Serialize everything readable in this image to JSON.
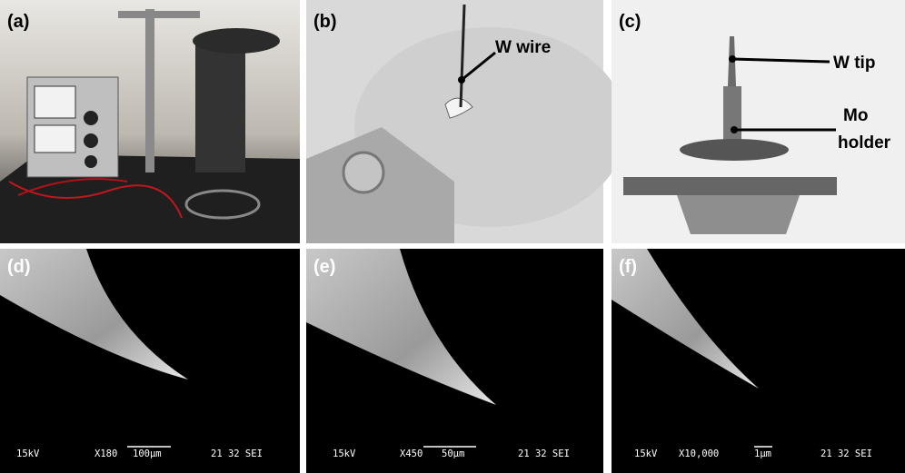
{
  "panels": [
    {
      "label": "(a)"
    },
    {
      "label": "(b)",
      "annotations": [
        "W wire"
      ]
    },
    {
      "label": "(c)",
      "annotations": [
        "W tip",
        "Mo",
        "holder"
      ]
    },
    {
      "label": "(d)",
      "sem": {
        "voltage": "15kV",
        "magnification": "X180",
        "scale": "100μm",
        "code": "21 32 SEI"
      }
    },
    {
      "label": "(e)",
      "sem": {
        "voltage": "15kV",
        "magnification": "X450",
        "scale": "50μm",
        "code": "21 32 SEI"
      }
    },
    {
      "label": "(f)",
      "sem": {
        "voltage": "15kV",
        "magnification": "X10,000",
        "scale": "1μm",
        "code": "21 32 SEI"
      }
    }
  ]
}
